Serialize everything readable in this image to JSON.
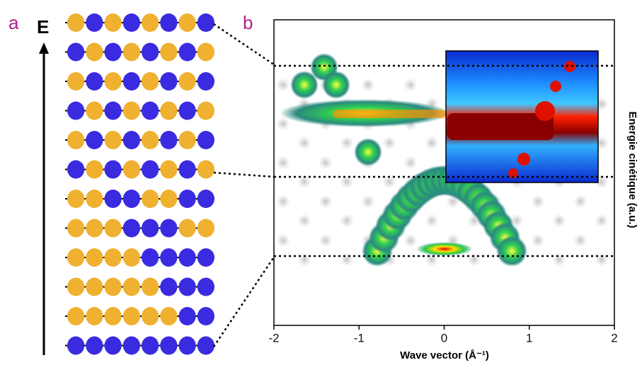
{
  "panels": {
    "a": {
      "label": "a",
      "axis_label": "E"
    },
    "b": {
      "label": "b",
      "x_label": "Wave vector (Å⁻¹)",
      "y_label": "Energie cinétique (a.u.)",
      "xlim": [
        -2,
        2
      ],
      "xticks": [
        -2,
        -1,
        0,
        1,
        2
      ]
    }
  }
}
